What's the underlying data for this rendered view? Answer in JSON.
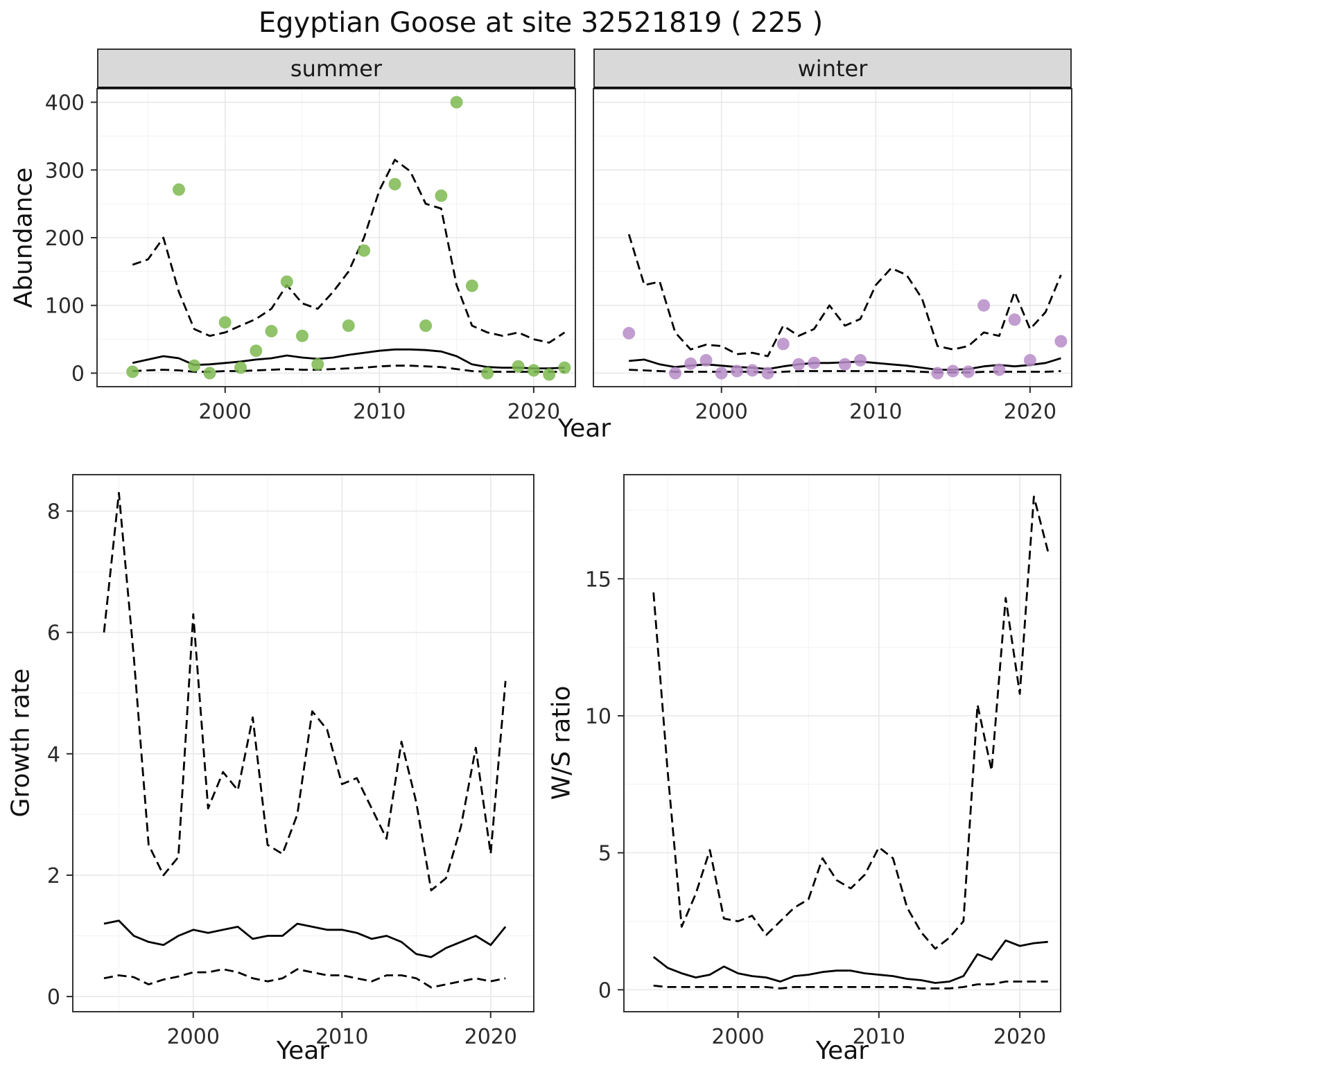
{
  "title": "Egyptian Goose at site 32521819 ( 225 )",
  "axes": {
    "abundance_ylabel": "Abundance",
    "top_xlabel": "Year",
    "growth_ylabel": "Growth rate",
    "growth_xlabel": "Year",
    "ws_ylabel": "W/S ratio",
    "ws_xlabel": "Year"
  },
  "facets": {
    "summer": "summer",
    "winter": "winter"
  },
  "style": {
    "summer_point_color": "#7cb950",
    "winter_point_color": "#b78cc8",
    "line_color": "#000000",
    "strip_bg": "#d9d9d9",
    "grid_major": "#e8e8e8",
    "grid_minor": "#f4f4f4",
    "panel_border": "#333333",
    "tick_text_color": "#2b2b2b"
  },
  "chart_data": [
    {
      "id": "abundance-summer",
      "type": "scatter",
      "facet_label": "summer",
      "xlabel": "Year",
      "ylabel": "Abundance",
      "xlim": [
        1991.7,
        2022.7
      ],
      "ylim": [
        -20,
        420
      ],
      "xticks": [
        2000,
        2010,
        2020
      ],
      "xminor": [
        1995,
        2005,
        2015
      ],
      "yticks": [
        0,
        100,
        200,
        300,
        400
      ],
      "yminor": [
        50,
        150,
        250,
        350
      ],
      "point_color": "#7cb950",
      "points": {
        "years": [
          1994,
          1997,
          1998,
          1999,
          2000,
          2001,
          2002,
          2003,
          2004,
          2005,
          2006,
          2008,
          2009,
          2011,
          2013,
          2014,
          2015,
          2016,
          2017,
          2019,
          2020,
          2021,
          2022
        ],
        "values": [
          2,
          271,
          11,
          0,
          75,
          8,
          33,
          62,
          135,
          55,
          13,
          70,
          181,
          279,
          70,
          262,
          400,
          129,
          0,
          10,
          4,
          -2,
          8
        ]
      },
      "median": {
        "years": [
          1994,
          1995,
          1996,
          1997,
          1998,
          1999,
          2000,
          2001,
          2002,
          2003,
          2004,
          2005,
          2006,
          2007,
          2008,
          2009,
          2010,
          2011,
          2012,
          2013,
          2014,
          2015,
          2016,
          2017,
          2018,
          2019,
          2020,
          2021,
          2022
        ],
        "values": [
          15,
          20,
          25,
          22,
          12,
          13,
          15,
          17,
          20,
          22,
          26,
          23,
          21,
          23,
          27,
          30,
          33,
          35,
          35,
          34,
          32,
          25,
          13,
          9,
          8,
          8,
          7,
          7,
          8
        ]
      },
      "upper": {
        "years": [
          1994,
          1995,
          1996,
          1997,
          1998,
          1999,
          2000,
          2001,
          2002,
          2003,
          2004,
          2005,
          2006,
          2007,
          2008,
          2009,
          2010,
          2011,
          2012,
          2013,
          2014,
          2015,
          2016,
          2017,
          2018,
          2019,
          2020,
          2021,
          2022
        ],
        "values": [
          160,
          168,
          200,
          120,
          65,
          55,
          60,
          70,
          80,
          95,
          130,
          103,
          95,
          120,
          150,
          200,
          270,
          315,
          298,
          250,
          243,
          130,
          70,
          60,
          55,
          60,
          50,
          45,
          60
        ]
      },
      "lower": {
        "years": [
          1994,
          1995,
          1996,
          1997,
          1998,
          1999,
          2000,
          2001,
          2002,
          2003,
          2004,
          2005,
          2006,
          2007,
          2008,
          2009,
          2010,
          2011,
          2012,
          2013,
          2014,
          2015,
          2016,
          2017,
          2018,
          2019,
          2020,
          2021,
          2022
        ],
        "values": [
          3,
          4,
          5,
          4,
          2,
          2,
          3,
          3,
          4,
          5,
          6,
          5,
          5,
          6,
          7,
          8,
          10,
          11,
          11,
          10,
          9,
          6,
          3,
          2,
          2,
          2,
          2,
          2,
          2
        ]
      }
    },
    {
      "id": "abundance-winter",
      "type": "scatter",
      "facet_label": "winter",
      "xlabel": "Year",
      "ylabel": "Abundance",
      "xlim": [
        1991.7,
        2022.7
      ],
      "ylim": [
        -20,
        420
      ],
      "xticks": [
        2000,
        2010,
        2020
      ],
      "xminor": [
        1995,
        2005,
        2015
      ],
      "yticks": [
        0,
        100,
        200,
        300,
        400
      ],
      "yminor": [
        50,
        150,
        250,
        350
      ],
      "point_color": "#b78cc8",
      "points": {
        "years": [
          1994,
          1997,
          1998,
          1999,
          2000,
          2001,
          2002,
          2003,
          2004,
          2005,
          2006,
          2008,
          2009,
          2014,
          2015,
          2016,
          2017,
          2018,
          2019,
          2020,
          2022
        ],
        "values": [
          59,
          0,
          14,
          19,
          0,
          3,
          4,
          0,
          43,
          13,
          15,
          13,
          19,
          0,
          3,
          2,
          100,
          5,
          79,
          19,
          47
        ]
      },
      "median": {
        "years": [
          1994,
          1995,
          1996,
          1997,
          1998,
          1999,
          2000,
          2001,
          2002,
          2003,
          2004,
          2005,
          2006,
          2007,
          2008,
          2009,
          2010,
          2011,
          2012,
          2013,
          2014,
          2015,
          2016,
          2017,
          2018,
          2019,
          2020,
          2021,
          2022
        ],
        "values": [
          18,
          20,
          13,
          9,
          11,
          13,
          11,
          9,
          8,
          6,
          10,
          13,
          15,
          15,
          16,
          17,
          15,
          13,
          11,
          8,
          5,
          5,
          6,
          10,
          12,
          10,
          12,
          15,
          22
        ]
      },
      "upper": {
        "years": [
          1994,
          1995,
          1996,
          1997,
          1998,
          1999,
          2000,
          2001,
          2002,
          2003,
          2004,
          2005,
          2006,
          2007,
          2008,
          2009,
          2010,
          2011,
          2012,
          2013,
          2014,
          2015,
          2016,
          2017,
          2018,
          2019,
          2020,
          2021,
          2022
        ],
        "values": [
          205,
          130,
          135,
          60,
          35,
          42,
          40,
          28,
          30,
          25,
          70,
          55,
          65,
          100,
          70,
          80,
          130,
          155,
          145,
          110,
          40,
          35,
          40,
          60,
          55,
          120,
          65,
          90,
          145
        ]
      },
      "lower": {
        "years": [
          1994,
          1995,
          1996,
          1997,
          1998,
          1999,
          2000,
          2001,
          2002,
          2003,
          2004,
          2005,
          2006,
          2007,
          2008,
          2009,
          2010,
          2011,
          2012,
          2013,
          2014,
          2015,
          2016,
          2017,
          2018,
          2019,
          2020,
          2021,
          2022
        ],
        "values": [
          5,
          4,
          3,
          2,
          2,
          2,
          2,
          2,
          2,
          1,
          2,
          3,
          3,
          3,
          3,
          3,
          3,
          3,
          3,
          2,
          1,
          1,
          1,
          2,
          2,
          2,
          2,
          2,
          3
        ]
      }
    },
    {
      "id": "growth-rate",
      "type": "line",
      "xlabel": "Year",
      "ylabel": "Growth rate",
      "xlim": [
        1991.9,
        2022.9
      ],
      "ylim": [
        -0.25,
        8.6
      ],
      "xticks": [
        2000,
        2010,
        2020
      ],
      "xminor": [
        1995,
        2005,
        2015
      ],
      "yticks": [
        0,
        2,
        4,
        6,
        8
      ],
      "yminor": [
        1,
        3,
        5,
        7
      ],
      "median": {
        "years": [
          1994,
          1995,
          1996,
          1997,
          1998,
          1999,
          2000,
          2001,
          2002,
          2003,
          2004,
          2005,
          2006,
          2007,
          2008,
          2009,
          2010,
          2011,
          2012,
          2013,
          2014,
          2015,
          2016,
          2017,
          2018,
          2019,
          2020,
          2021
        ],
        "values": [
          1.2,
          1.25,
          1.0,
          0.9,
          0.85,
          1.0,
          1.1,
          1.05,
          1.1,
          1.15,
          0.95,
          1.0,
          1.0,
          1.2,
          1.15,
          1.1,
          1.1,
          1.05,
          0.95,
          1.0,
          0.9,
          0.7,
          0.65,
          0.8,
          0.9,
          1.0,
          0.85,
          1.15
        ]
      },
      "upper": {
        "years": [
          1994,
          1995,
          1996,
          1997,
          1998,
          1999,
          2000,
          2001,
          2002,
          2003,
          2004,
          2005,
          2006,
          2007,
          2008,
          2009,
          2010,
          2011,
          2012,
          2013,
          2014,
          2015,
          2016,
          2017,
          2018,
          2019,
          2020,
          2021
        ],
        "values": [
          6.0,
          8.3,
          5.6,
          2.5,
          2.0,
          2.3,
          6.3,
          3.1,
          3.7,
          3.4,
          4.6,
          2.5,
          2.35,
          3.0,
          4.7,
          4.4,
          3.5,
          3.6,
          3.1,
          2.6,
          4.2,
          3.2,
          1.75,
          1.95,
          2.8,
          4.1,
          2.35,
          5.2
        ]
      },
      "lower": {
        "years": [
          1994,
          1995,
          1996,
          1997,
          1998,
          1999,
          2000,
          2001,
          2002,
          2003,
          2004,
          2005,
          2006,
          2007,
          2008,
          2009,
          2010,
          2011,
          2012,
          2013,
          2014,
          2015,
          2016,
          2017,
          2018,
          2019,
          2020,
          2021
        ],
        "values": [
          0.3,
          0.35,
          0.32,
          0.2,
          0.28,
          0.33,
          0.4,
          0.4,
          0.45,
          0.4,
          0.3,
          0.25,
          0.3,
          0.45,
          0.4,
          0.35,
          0.35,
          0.3,
          0.25,
          0.35,
          0.35,
          0.3,
          0.15,
          0.2,
          0.25,
          0.3,
          0.25,
          0.3
        ]
      }
    },
    {
      "id": "ws-ratio",
      "type": "line",
      "xlabel": "Year",
      "ylabel": "W/S ratio",
      "xlim": [
        1991.9,
        2022.9
      ],
      "ylim": [
        -0.8,
        18.8
      ],
      "xticks": [
        2000,
        2010,
        2020
      ],
      "xminor": [
        1995,
        2005,
        2015
      ],
      "yticks": [
        0,
        5,
        10,
        15
      ],
      "yminor": [
        2.5,
        7.5,
        12.5,
        17.5
      ],
      "median": {
        "years": [
          1994,
          1995,
          1996,
          1997,
          1998,
          1999,
          2000,
          2001,
          2002,
          2003,
          2004,
          2005,
          2006,
          2007,
          2008,
          2009,
          2010,
          2011,
          2012,
          2013,
          2014,
          2015,
          2016,
          2017,
          2018,
          2019,
          2020,
          2021,
          2022
        ],
        "values": [
          1.2,
          0.8,
          0.6,
          0.45,
          0.55,
          0.85,
          0.6,
          0.5,
          0.45,
          0.3,
          0.5,
          0.55,
          0.65,
          0.7,
          0.7,
          0.6,
          0.55,
          0.5,
          0.4,
          0.35,
          0.25,
          0.3,
          0.5,
          1.3,
          1.1,
          1.8,
          1.6,
          1.7,
          1.75
        ]
      },
      "upper": {
        "years": [
          1994,
          1995,
          1996,
          1997,
          1998,
          1999,
          2000,
          2001,
          2002,
          2003,
          2004,
          2005,
          2006,
          2007,
          2008,
          2009,
          2010,
          2011,
          2012,
          2013,
          2014,
          2015,
          2016,
          2017,
          2018,
          2019,
          2020,
          2021,
          2022
        ],
        "values": [
          14.5,
          8.0,
          2.3,
          3.5,
          5.1,
          2.6,
          2.5,
          2.7,
          2.0,
          2.5,
          3.0,
          3.3,
          4.8,
          4.0,
          3.7,
          4.2,
          5.2,
          4.8,
          3.0,
          2.1,
          1.5,
          1.9,
          2.5,
          10.4,
          8.0,
          14.3,
          10.8,
          18.0,
          16.0
        ]
      },
      "lower": {
        "years": [
          1994,
          1995,
          1996,
          1997,
          1998,
          1999,
          2000,
          2001,
          2002,
          2003,
          2004,
          2005,
          2006,
          2007,
          2008,
          2009,
          2010,
          2011,
          2012,
          2013,
          2014,
          2015,
          2016,
          2017,
          2018,
          2019,
          2020,
          2021,
          2022
        ],
        "values": [
          0.15,
          0.1,
          0.1,
          0.1,
          0.1,
          0.1,
          0.1,
          0.1,
          0.1,
          0.05,
          0.1,
          0.1,
          0.1,
          0.1,
          0.1,
          0.1,
          0.1,
          0.1,
          0.1,
          0.05,
          0.05,
          0.05,
          0.1,
          0.2,
          0.2,
          0.3,
          0.3,
          0.3,
          0.3
        ]
      }
    }
  ]
}
